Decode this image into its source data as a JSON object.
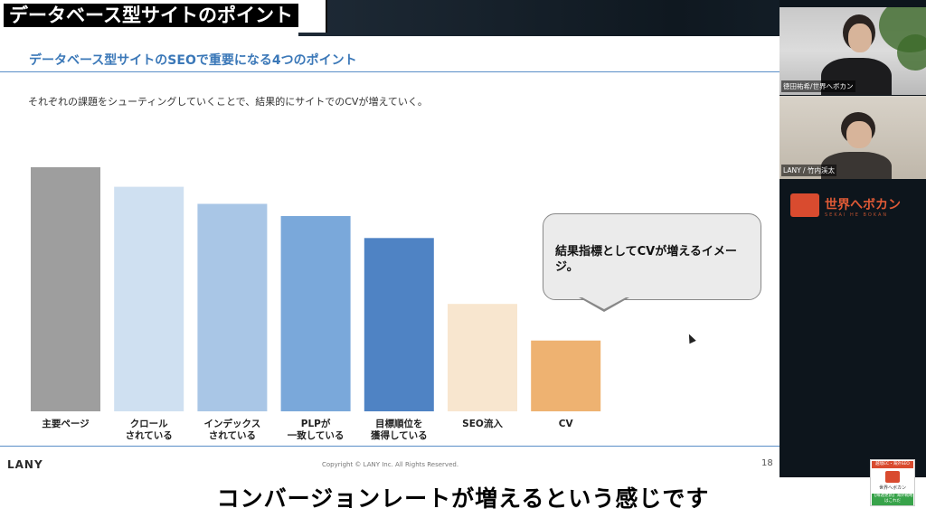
{
  "video_title": "データベース型サイトのポイント",
  "slide": {
    "header_title": "データベース型サイトのSEOで重要になる4つのポイント",
    "subtitle": "それぞれの課題をシューティングしていくことで、結果的にサイトでのCVが増えていく。",
    "callout": "結果指標としてCVが増えるイメージ。",
    "brand": "LANY",
    "copyright": "Copyright © LANY Inc. All Rights Reserved.",
    "page_number": "18"
  },
  "chart_data": {
    "type": "bar",
    "categories": [
      [
        "主要ページ"
      ],
      [
        "クロール",
        "されている"
      ],
      [
        "インデックス",
        "されている"
      ],
      [
        "PLPが",
        "一致している"
      ],
      [
        "目標順位を",
        "獲得している"
      ],
      [
        "SEO流入"
      ],
      [
        "CV"
      ]
    ],
    "values": [
      100,
      92,
      85,
      80,
      71,
      44,
      29
    ],
    "colors": [
      "#9e9e9e",
      "#cfe0f1",
      "#a9c6e6",
      "#7aa8da",
      "#4f83c4",
      "#f8e6cf",
      "#eeb271"
    ],
    "ylim": [
      0,
      100
    ],
    "grid": false,
    "legend": "none"
  },
  "webcams": [
    {
      "name": "徳田祐希/世界へボカン"
    },
    {
      "name": "LANY / 竹内渓太"
    }
  ],
  "logo": {
    "text": "世界へボカン",
    "sub": "SEKAI HE BOKAN"
  },
  "badge": {
    "top": "越境EC・海外SEO",
    "name": "世界へボカン",
    "bottom": "【毎週更新】海外戦略はこれだ"
  },
  "caption": "コンバージョンレートが増えるという感じです",
  "colors": {
    "accent": "#3b78b8",
    "brand_red": "#d94b2f",
    "callout_bg": "#ebebeb"
  }
}
